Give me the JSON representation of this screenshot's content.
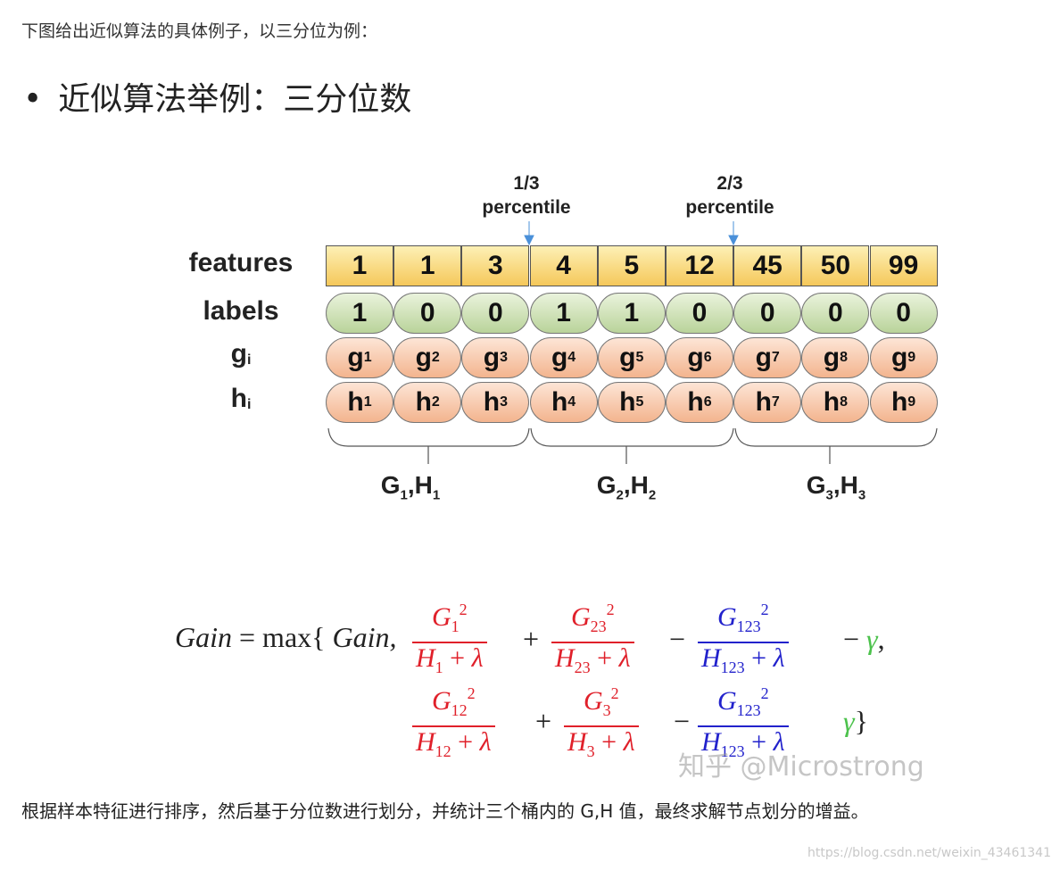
{
  "intro": "下图给出近似算法的具体例子，以三分位为例：",
  "heading": {
    "bullet": "•",
    "text": "近似算法举例：三分位数"
  },
  "diagram": {
    "percentiles": [
      {
        "fraction": "1/3",
        "label": "percentile"
      },
      {
        "fraction": "2/3",
        "label": "percentile"
      }
    ],
    "row_labels": {
      "features": "features",
      "labels": "labels",
      "g": "g",
      "g_sub": "i",
      "h": "h",
      "h_sub": "i"
    },
    "features": [
      "1",
      "1",
      "3",
      "4",
      "5",
      "12",
      "45",
      "50",
      "99"
    ],
    "labels": [
      "1",
      "0",
      "0",
      "1",
      "1",
      "0",
      "0",
      "0",
      "0"
    ],
    "g": {
      "base": "g",
      "subs": [
        "1",
        "2",
        "3",
        "4",
        "5",
        "6",
        "7",
        "8",
        "9"
      ]
    },
    "h": {
      "base": "h",
      "subs": [
        "1",
        "2",
        "3",
        "4",
        "5",
        "6",
        "7",
        "8",
        "9"
      ]
    },
    "groups": [
      {
        "G": "G",
        "H": "H",
        "sub": "1"
      },
      {
        "G": "G",
        "H": "H",
        "sub": "2"
      },
      {
        "G": "G",
        "H": "H",
        "sub": "3"
      }
    ],
    "colors": {
      "features": "#f5c85a",
      "labels": "#b9d39a",
      "gh": "#f3b48e",
      "arrow": "#4a90d9"
    }
  },
  "formula": {
    "lhs": "Gain",
    "eq": "=",
    "max": "max{",
    "gain_arg": "Gain,",
    "row1": [
      {
        "num_sub": "1",
        "den_sub": "1",
        "color": "red"
      },
      {
        "num_sub": "23",
        "den_sub": "23",
        "color": "red"
      },
      {
        "num_sub": "123",
        "den_sub": "123",
        "color": "blue"
      }
    ],
    "row2": [
      {
        "num_sub": "12",
        "den_sub": "12",
        "color": "red"
      },
      {
        "num_sub": "3",
        "den_sub": "3",
        "color": "red"
      },
      {
        "num_sub": "123",
        "den_sub": "123",
        "color": "blue"
      }
    ],
    "gamma": "γ",
    "comma": ",",
    "close": "}",
    "plus": "+",
    "minus": "−",
    "lambda": "λ",
    "sq": "2",
    "G": "G",
    "H": "H",
    "colors": {
      "red": "#e0202a",
      "blue": "#2222cc",
      "green": "#4cc24c"
    }
  },
  "watermark_zhihu": "知乎 @Microstrong",
  "outro": "根据样本特征进行排序，然后基于分位数进行划分，并统计三个桶内的 G,H 值，最终求解节点划分的增益。",
  "csdn_watermark": "https://blog.csdn.net/weixin_43461341"
}
